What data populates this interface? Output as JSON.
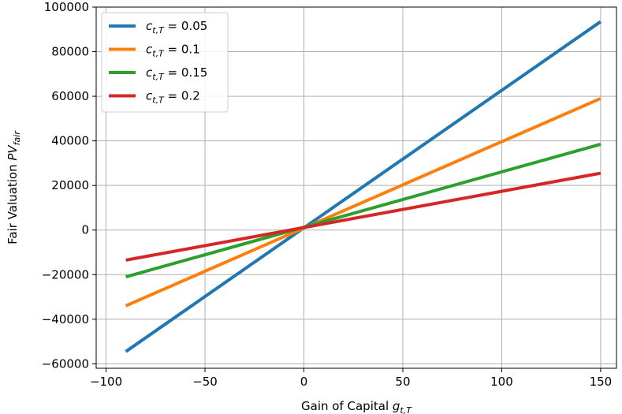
{
  "chart_data": {
    "type": "line",
    "title": "",
    "xlabel": "Gain of Capital g_{t,T}",
    "ylabel": "Fair Valuation PV_{fair}",
    "xlim": [
      -105,
      158
    ],
    "ylim": [
      -62000,
      100000
    ],
    "xticks": [
      -100,
      -50,
      0,
      50,
      100,
      150
    ],
    "yticks": [
      -60000,
      -40000,
      -20000,
      0,
      20000,
      40000,
      60000,
      80000,
      100000
    ],
    "xtick_labels": [
      "−100",
      "−50",
      "0",
      "50",
      "100",
      "150"
    ],
    "ytick_labels": [
      "−60000",
      "−40000",
      "−20000",
      "0",
      "20000",
      "40000",
      "60000",
      "80000",
      "100000"
    ],
    "grid": true,
    "legend_position": "top-left",
    "series": [
      {
        "name": "c_{t,T} = 0.05",
        "legend_var": "c",
        "legend_sub": "t,T",
        "legend_value": " = 0.05",
        "color": "#1f77b4",
        "x": [
          -90,
          150
        ],
        "y": [
          -54500,
          93500
        ]
      },
      {
        "name": "c_{t,T} = 0.1",
        "legend_var": "c",
        "legend_sub": "t,T",
        "legend_value": " = 0.1",
        "color": "#ff7f0e",
        "x": [
          -90,
          150
        ],
        "y": [
          -34000,
          59000
        ]
      },
      {
        "name": "c_{t,T} = 0.15",
        "legend_var": "c",
        "legend_sub": "t,T",
        "legend_value": " = 0.15",
        "color": "#2ca02c",
        "x": [
          -90,
          150
        ],
        "y": [
          -21000,
          38500
        ]
      },
      {
        "name": "c_{t,T} = 0.2",
        "legend_var": "c",
        "legend_sub": "t,T",
        "legend_value": " = 0.2",
        "color": "#d62728",
        "x": [
          -90,
          150
        ],
        "y": [
          -13500,
          25500
        ]
      }
    ]
  },
  "labels": {
    "xlabel_text": "Gain of Capital ",
    "xlabel_var": "g",
    "xlabel_sub": "t,T",
    "ylabel_text": "Fair Valuation ",
    "ylabel_var": "PV",
    "ylabel_sub": "fair"
  }
}
